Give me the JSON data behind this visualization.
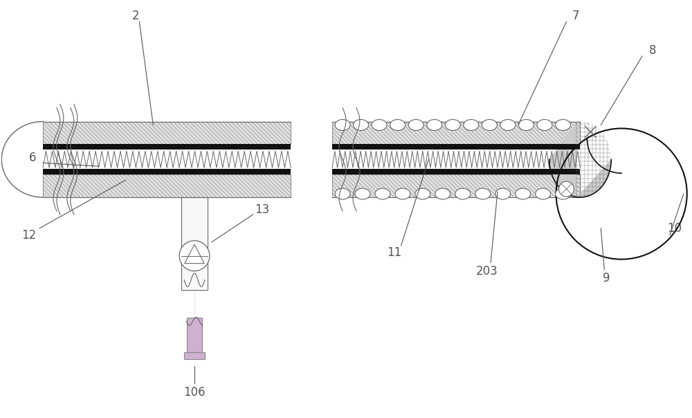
{
  "fig_width": 10.0,
  "fig_height": 6.04,
  "bg_color": "#ffffff",
  "line_color": "#666666",
  "dark_color": "#111111",
  "lc": "#666666",
  "dc": "#111111"
}
